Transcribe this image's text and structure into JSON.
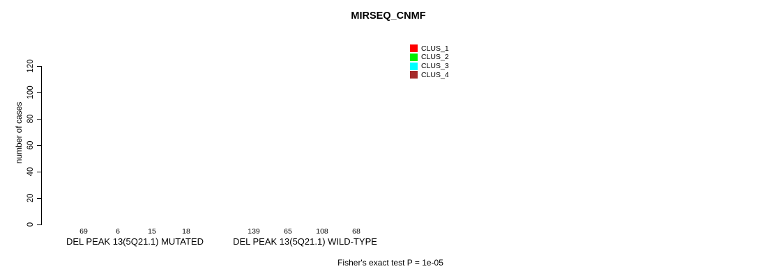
{
  "chart_data": {
    "type": "bar",
    "title": "MIRSEQ_CNMF",
    "ylabel": "number of cases",
    "xlabel": "",
    "ylim": [
      0,
      145
    ],
    "yticks": [
      0,
      20,
      40,
      60,
      80,
      100,
      120
    ],
    "grid": false,
    "legend_position": "top-right",
    "series": [
      {
        "name": "CLUS_1",
        "color": "#ff0000"
      },
      {
        "name": "CLUS_2",
        "color": "#00ee00"
      },
      {
        "name": "CLUS_3",
        "color": "#00ffff"
      },
      {
        "name": "CLUS_4",
        "color": "#a52a2a"
      }
    ],
    "groups": [
      {
        "label": "DEL PEAK 13(5Q21.1) MUTATED",
        "values": [
          69,
          6,
          15,
          18
        ],
        "value_labels": [
          "69",
          "6",
          "15",
          "18"
        ]
      },
      {
        "label": "DEL PEAK 13(5Q21.1) WILD-TYPE",
        "values": [
          139,
          65,
          108,
          68
        ],
        "value_labels": [
          "139",
          "65",
          "108",
          "68"
        ]
      }
    ],
    "annotation": "Fisher's exact test P = 1e-05"
  }
}
